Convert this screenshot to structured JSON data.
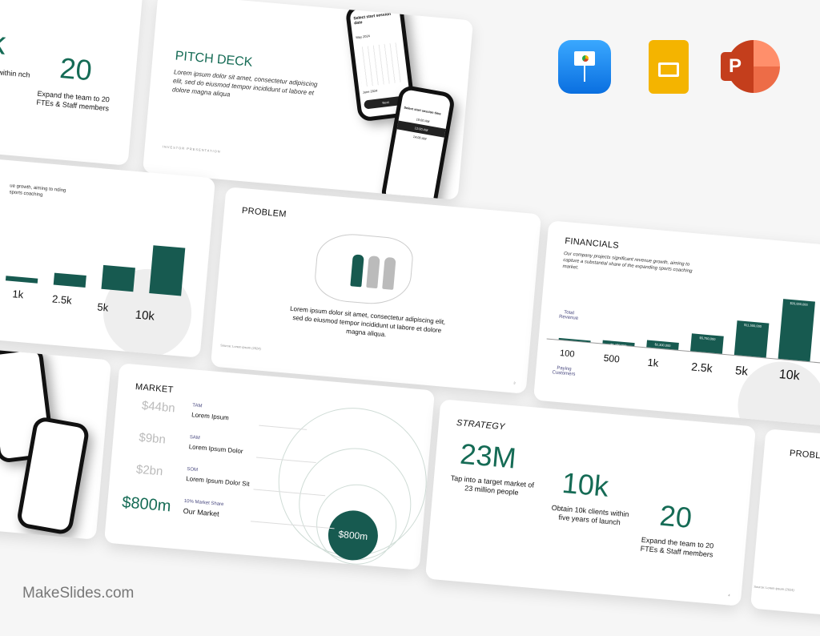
{
  "apps": {
    "keynote": "keynote-icon",
    "slides": "google-slides-icon",
    "powerpoint": "powerpoint-icon"
  },
  "colors": {
    "accent": "#156b55",
    "bar": "#175a50",
    "keynote": "#1c8cf0",
    "slides": "#f4b400",
    "powerpoint": "#d24726"
  },
  "brand": "MakeSlides.com",
  "strategy": {
    "title": "STRATEGY",
    "stats": [
      {
        "value": "23M",
        "caption": "Tap into a target market of 23 million people"
      },
      {
        "value": "10k",
        "caption": "Obtain 10k clients within five years of launch"
      },
      {
        "value": "20",
        "caption": "Expand the team to 20 FTEs & Staff members"
      }
    ],
    "page": "4"
  },
  "strategy_partial": {
    "value_a": "k",
    "caption_a": "s within nch",
    "value_b": "20",
    "caption_b": "Expand the team to 20 FTEs & Staff members"
  },
  "pitch": {
    "title": "PITCH DECK",
    "body": "Lorem ipsum dolor sit amet, consectetur adipiscing elit, sed do eiusmod tempor incididunt ut labore et dolore magna aliqua",
    "footer": "INVESTOR PRESENTATION",
    "phone1": {
      "title": "Select start session date",
      "month1": "May 2024",
      "month2": "June 2024",
      "button": "Next"
    },
    "phone2": {
      "title": "Select start session time",
      "slot1": "10:00 AM",
      "slot2": "12:00 AM",
      "slot3": "14:00 AM"
    }
  },
  "problem": {
    "title": "PROBLEM",
    "body": "Lorem ipsum dolor sit amet, consectetur adipiscing elit, sed do eiusmod tempor incididunt ut labore et dolore magna aliqua.",
    "source": "Source: Lorem ipsum (2024)",
    "page": "3"
  },
  "financials": {
    "title": "FINANCIALS",
    "body": "Our company projects significant revenue growth, aiming to capture a substantial share of the expanding sports coaching market.",
    "revenue_label": "Total Revenue",
    "customers_label": "Paying Customers",
    "customers": [
      "100",
      "500",
      "1k",
      "2.5k",
      "5k",
      "10k"
    ],
    "revenue": [
      230000,
      1150000,
      2300000,
      5750000,
      11500000,
      20000000
    ],
    "revenue_labels": [
      "$230,000",
      "$1,150,000",
      "$2,300,000",
      "$5,750,000",
      "$11,500,000",
      "$20,000,000"
    ]
  },
  "financials_partial": {
    "body": "ue growth, aiming to nding sports coaching"
  },
  "market": {
    "title": "MARKET",
    "rows": [
      {
        "value": "$44bn",
        "tag": "TAM",
        "label": "Lorem Ipsum"
      },
      {
        "value": "$9bn",
        "tag": "SAM",
        "label": "Lorem Ipsum Dolor"
      },
      {
        "value": "$2bn",
        "tag": "SOM",
        "label": "Lorem Ipsum Dolor Sit"
      },
      {
        "value": "$800m",
        "tag": "10% Market Share",
        "label": "Our Market"
      }
    ],
    "bubble": "$800m"
  },
  "problem_partial": {
    "title": "PROBLEM",
    "source": "Source: Lorem ipsum (2024)"
  }
}
